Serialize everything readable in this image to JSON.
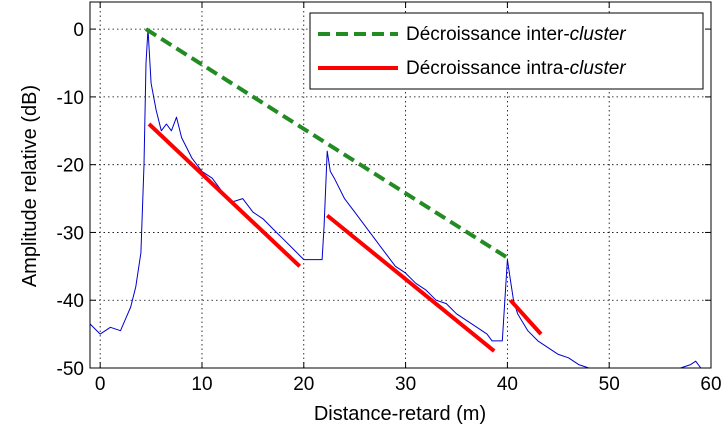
{
  "chart_data": {
    "type": "line",
    "title": "",
    "xlabel": "Distance-retard (m)",
    "ylabel": "Amplitude relative (dB)",
    "xlim": [
      -1,
      60
    ],
    "ylim": [
      -50,
      4
    ],
    "xticks": [
      0,
      10,
      20,
      30,
      40,
      50,
      60
    ],
    "yticks": [
      0,
      -10,
      -20,
      -30,
      -40,
      -50
    ],
    "x_tick_labels": [
      "0",
      "10",
      "20",
      "30",
      "40",
      "50",
      "60"
    ],
    "y_tick_labels": [
      "0",
      "-10",
      "-20",
      "-30",
      "-40",
      "-50"
    ],
    "grid": true,
    "legend_position": "top-right",
    "legend": [
      {
        "prefix": "Décroissance inter-",
        "italic": "cluster",
        "color": "#228B22",
        "style": "dashed",
        "series": "inter"
      },
      {
        "prefix": "Décroissance intra-",
        "italic": "cluster",
        "color": "#FF0000",
        "style": "solid",
        "series": "intra"
      }
    ],
    "series": [
      {
        "id": "measured",
        "color": "#0000CC",
        "x": [
          -1,
          0,
          1,
          2,
          3,
          3.5,
          4,
          4.3,
          4.5,
          4.7,
          5,
          5.5,
          6,
          6.5,
          7,
          7.5,
          8,
          9,
          10,
          11,
          12,
          13,
          14,
          15,
          16,
          17,
          18,
          19,
          20,
          21,
          21.8,
          22,
          22.3,
          22.6,
          23,
          24,
          25,
          26,
          27,
          28,
          29,
          30,
          31,
          32,
          33,
          34,
          35,
          36,
          37,
          38,
          38.5,
          39,
          39.5,
          40,
          40.3,
          40.6,
          41,
          42,
          43,
          44,
          45,
          46,
          47,
          48,
          49,
          50,
          51,
          52,
          53,
          54,
          55,
          56,
          57,
          58,
          58.5,
          59,
          60
        ],
        "y": [
          -43.5,
          -45,
          -44,
          -44.5,
          -41,
          -38,
          -33,
          -20,
          -5,
          0,
          -8,
          -12,
          -15,
          -14,
          -15,
          -13,
          -16,
          -19,
          -21,
          -22,
          -24,
          -25.5,
          -25,
          -27,
          -28,
          -29.5,
          -31,
          -32.5,
          -34,
          -34,
          -34,
          -29,
          -18,
          -21,
          -22,
          -25,
          -27,
          -29,
          -31,
          -33,
          -35,
          -36,
          -37.5,
          -38.5,
          -40,
          -40.5,
          -42,
          -43,
          -44,
          -45,
          -46,
          -46,
          -46,
          -34,
          -37,
          -40,
          -42,
          -44.5,
          -46,
          -47,
          -48,
          -48.5,
          -49.5,
          -50,
          -50,
          -50,
          -50,
          -50,
          -50,
          -50,
          -50,
          -50,
          -50,
          -49.5,
          -49,
          -50,
          -50
        ]
      },
      {
        "id": "inter",
        "name": "Décroissance inter-cluster",
        "color": "#228B22",
        "style": "dashed",
        "x": [
          4.5,
          40.3
        ],
        "y": [
          0,
          -34
        ]
      },
      {
        "id": "intra-1",
        "color": "#FF0000",
        "style": "solid",
        "x": [
          4.8,
          19.6
        ],
        "y": [
          -14,
          -35
        ]
      },
      {
        "id": "intra-2",
        "color": "#FF0000",
        "style": "solid",
        "x": [
          22.3,
          38.7
        ],
        "y": [
          -27.5,
          -47.5
        ]
      },
      {
        "id": "intra-3",
        "color": "#FF0000",
        "style": "solid",
        "x": [
          40.3,
          43.3
        ],
        "y": [
          -40,
          -45
        ]
      }
    ]
  }
}
